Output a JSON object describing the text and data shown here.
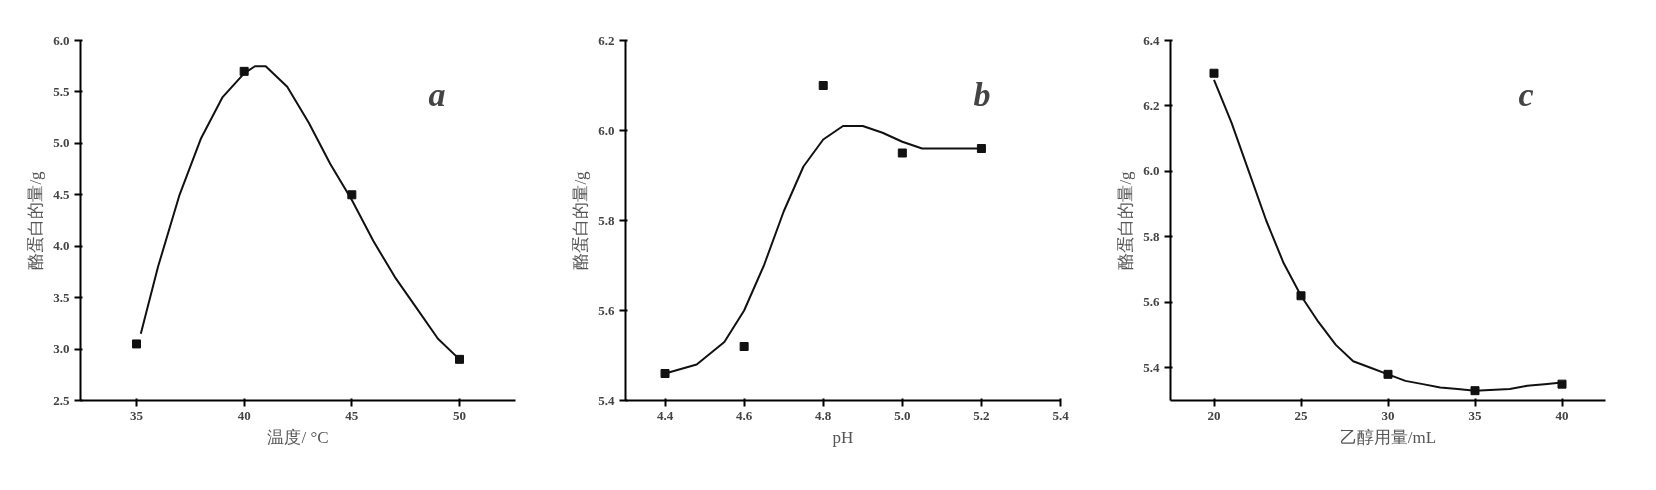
{
  "chart_data": [
    {
      "type": "scatter",
      "xlabel": "温度/ °C",
      "ylabel": "酪蛋白的量/g",
      "annotations": [
        "a"
      ],
      "xlim": [
        32.4,
        52.6
      ],
      "xticks": [
        35,
        40,
        45,
        50
      ],
      "ylim": [
        2.5,
        6.0
      ],
      "yticks": [
        2.5,
        {
          "value": 3.0,
          "label": "3.0"
        },
        3.5,
        {
          "value": 4.0,
          "label": "4.0"
        },
        4.5,
        {
          "value": 5.0,
          "label": "5.0"
        },
        5.5,
        {
          "value": 6.0,
          "label": "6.0"
        }
      ],
      "series": [
        {
          "marker": "square",
          "color": "#111111",
          "x": [
            35,
            40,
            45,
            50
          ],
          "values": [
            3.05,
            5.7,
            4.5,
            2.9
          ]
        },
        {
          "type": "line",
          "color": "#111111",
          "x": [
            35.2,
            36,
            37,
            38,
            39,
            40,
            40.5,
            41,
            42,
            43,
            44,
            45,
            46,
            47,
            48,
            49,
            50
          ],
          "values": [
            3.15,
            3.8,
            4.5,
            5.05,
            5.45,
            5.68,
            5.75,
            5.75,
            5.55,
            5.2,
            4.8,
            4.45,
            4.05,
            3.7,
            3.4,
            3.1,
            2.9
          ]
        }
      ]
    },
    {
      "type": "scatter",
      "xlabel": "pH",
      "ylabel": "酪蛋白的量/g",
      "annotations": [
        "b"
      ],
      "xlim": [
        4.3,
        5.4
      ],
      "xticks": [
        4.4,
        4.6,
        4.8,
        {
          "value": 5.0,
          "label": "5.0"
        },
        5.2,
        5.4
      ],
      "ylim": [
        5.4,
        6.2
      ],
      "yticks": [
        5.4,
        5.6,
        5.8,
        {
          "value": 6.0,
          "label": "6.0"
        },
        6.2
      ],
      "series": [
        {
          "marker": "square",
          "color": "#111111",
          "x": [
            4.4,
            4.6,
            4.8,
            5.0,
            5.2
          ],
          "values": [
            5.46,
            5.52,
            6.1,
            5.95,
            5.96
          ]
        },
        {
          "type": "line",
          "color": "#111111",
          "x": [
            4.4,
            4.48,
            4.55,
            4.6,
            4.65,
            4.7,
            4.75,
            4.8,
            4.85,
            4.9,
            4.95,
            5.0,
            5.05,
            5.1,
            5.2
          ],
          "values": [
            5.46,
            5.48,
            5.53,
            5.6,
            5.7,
            5.82,
            5.92,
            5.98,
            6.01,
            6.01,
            5.995,
            5.975,
            5.96,
            5.96,
            5.96
          ]
        }
      ]
    },
    {
      "type": "scatter",
      "xlabel": "乙醇用量/mL",
      "ylabel": "酪蛋白的量/g",
      "annotations": [
        "c"
      ],
      "xlim": [
        17.5,
        42.5
      ],
      "xticks": [
        20,
        25,
        30,
        35,
        40
      ],
      "ylim": [
        5.3,
        6.4
      ],
      "yticks": [
        5.4,
        5.6,
        5.8,
        {
          "value": 6.0,
          "label": "6.0"
        },
        6.2,
        6.4
      ],
      "series": [
        {
          "marker": "square",
          "color": "#111111",
          "x": [
            20,
            25,
            30,
            35,
            40
          ],
          "values": [
            6.3,
            5.62,
            5.38,
            5.33,
            5.35
          ]
        },
        {
          "type": "line",
          "color": "#111111",
          "x": [
            20,
            21,
            22,
            23,
            24,
            25,
            26,
            27,
            28,
            29,
            30,
            31,
            32,
            33,
            34,
            35,
            37,
            38,
            39,
            40
          ],
          "values": [
            6.28,
            6.15,
            6.0,
            5.85,
            5.72,
            5.62,
            5.54,
            5.47,
            5.42,
            5.4,
            5.38,
            5.36,
            5.35,
            5.34,
            5.335,
            5.33,
            5.335,
            5.345,
            5.35,
            5.355
          ]
        }
      ]
    }
  ]
}
